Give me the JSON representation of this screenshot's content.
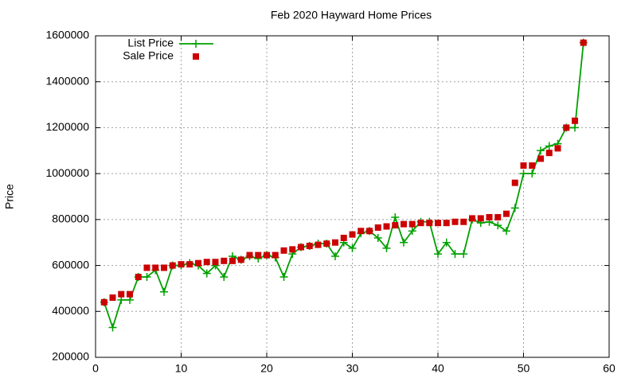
{
  "chart_data": {
    "type": "line",
    "title": "Feb 2020 Hayward Home Prices",
    "ylabel": "Price",
    "x": [
      1,
      2,
      3,
      4,
      5,
      6,
      7,
      8,
      9,
      10,
      11,
      12,
      13,
      14,
      15,
      16,
      17,
      18,
      19,
      20,
      21,
      22,
      23,
      24,
      25,
      26,
      27,
      28,
      29,
      30,
      31,
      32,
      33,
      34,
      35,
      36,
      37,
      38,
      39,
      40,
      41,
      42,
      43,
      44,
      45,
      46,
      47,
      48,
      49,
      50,
      51,
      52,
      53,
      54,
      55,
      56,
      57
    ],
    "series": [
      {
        "name": "List Price",
        "color": "#00a000",
        "mode": "lines+points",
        "values": [
          440000,
          330000,
          450000,
          450000,
          550000,
          550000,
          580000,
          485000,
          600000,
          600000,
          610000,
          600000,
          565000,
          600000,
          550000,
          640000,
          625000,
          640000,
          630000,
          645000,
          635000,
          550000,
          650000,
          680000,
          685000,
          695000,
          695000,
          640000,
          700000,
          675000,
          740000,
          750000,
          720000,
          675000,
          810000,
          700000,
          750000,
          790000,
          790000,
          650000,
          700000,
          650000,
          650000,
          800000,
          785000,
          790000,
          775000,
          750000,
          850000,
          1000000,
          1000000,
          1100000,
          1120000,
          1130000,
          1200000,
          1200000,
          1570000
        ]
      },
      {
        "name": "Sale Price",
        "color": "#cc0000",
        "mode": "points",
        "values": [
          440000,
          460000,
          475000,
          475000,
          550000,
          590000,
          590000,
          590000,
          600000,
          605000,
          605000,
          610000,
          615000,
          615000,
          620000,
          620000,
          625000,
          645000,
          645000,
          645000,
          645000,
          665000,
          670000,
          680000,
          685000,
          690000,
          695000,
          700000,
          720000,
          735000,
          750000,
          750000,
          765000,
          770000,
          775000,
          780000,
          780000,
          785000,
          785000,
          785000,
          785000,
          790000,
          790000,
          805000,
          805000,
          810000,
          810000,
          825000,
          960000,
          1035000,
          1035000,
          1065000,
          1090000,
          1110000,
          1200000,
          1230000,
          1570000
        ]
      }
    ],
    "xlim": [
      0,
      60
    ],
    "xticks": [
      0,
      10,
      20,
      30,
      40,
      50,
      60
    ],
    "ylim": [
      200000,
      1600000
    ],
    "yticks": [
      200000,
      400000,
      600000,
      800000,
      1000000,
      1200000,
      1400000,
      1600000
    ],
    "grid": true,
    "legend": "top-left"
  }
}
